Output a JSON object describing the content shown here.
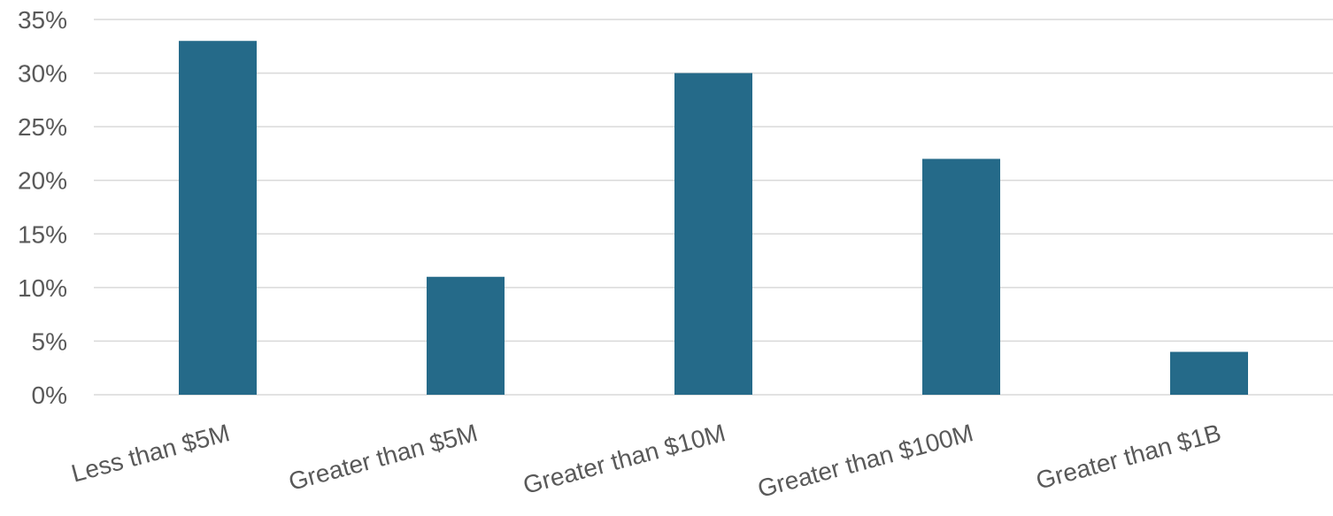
{
  "chart_data": {
    "type": "bar",
    "title": "",
    "xlabel": "",
    "ylabel": "",
    "categories": [
      "Less than $5M",
      "Greater than $5M",
      "Greater than $10M",
      "Greater than $100M",
      "Greater than $1B"
    ],
    "values": [
      33,
      11,
      30,
      22,
      4
    ],
    "unit": "%",
    "ylim": [
      0,
      35
    ],
    "yticks": [
      0,
      5,
      10,
      15,
      20,
      25,
      30,
      35
    ],
    "ytick_labels": [
      "0%",
      "5%",
      "10%",
      "15%",
      "20%",
      "25%",
      "30%",
      "35%"
    ],
    "grid": true,
    "legend": "none",
    "bar_color": "#256a89",
    "grid_color": "#d9d9d9",
    "text_color": "#595959"
  }
}
